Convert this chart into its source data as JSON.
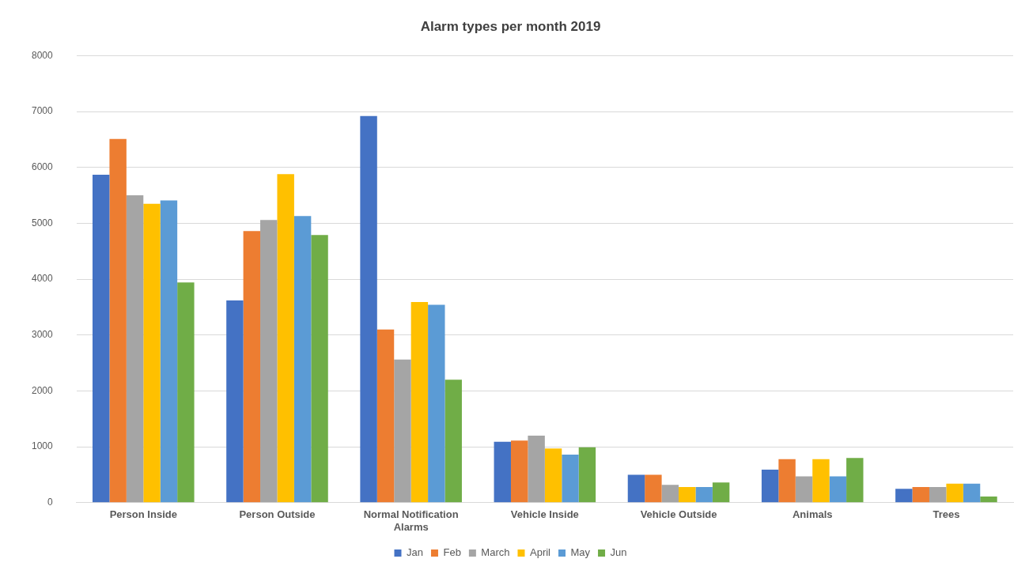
{
  "chart_data": {
    "type": "bar",
    "title": "Alarm types per month 2019",
    "categories": [
      "Person Inside",
      "Person Outside",
      "Normal Notification Alarms",
      "Vehicle Inside",
      "Vehicle Outside",
      "Animals",
      "Trees"
    ],
    "series": [
      {
        "name": "Jan",
        "color": "#4472c4",
        "values": [
          5870,
          3620,
          6920,
          1090,
          500,
          590,
          250
        ]
      },
      {
        "name": "Feb",
        "color": "#ed7d31",
        "values": [
          6510,
          4860,
          3100,
          1110,
          500,
          780,
          280
        ]
      },
      {
        "name": "March",
        "color": "#a5a5a5",
        "values": [
          5500,
          5060,
          2560,
          1200,
          320,
          470,
          280
        ]
      },
      {
        "name": "April",
        "color": "#ffc000",
        "values": [
          5350,
          5880,
          3590,
          970,
          280,
          780,
          340
        ]
      },
      {
        "name": "May",
        "color": "#5b9bd5",
        "values": [
          5410,
          5130,
          3540,
          860,
          280,
          470,
          340
        ]
      },
      {
        "name": "Jun",
        "color": "#70ad47",
        "values": [
          3940,
          4790,
          2200,
          990,
          360,
          800,
          110
        ]
      }
    ],
    "ylim": [
      0,
      8000
    ],
    "yticks": [
      0,
      1000,
      2000,
      3000,
      4000,
      5000,
      6000,
      7000,
      8000
    ],
    "grid": "y",
    "legend": "bottom"
  }
}
